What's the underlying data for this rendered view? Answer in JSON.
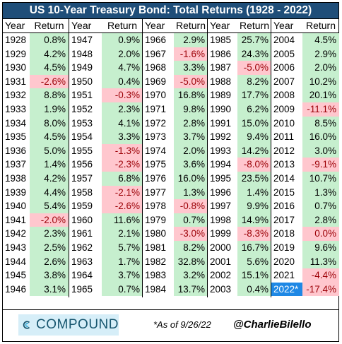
{
  "title": "US 10-Year Treasury Bond: Total Returns (1928 - 2022)",
  "headers": {
    "year": "Year",
    "return": "Return"
  },
  "chart_data": {
    "type": "table",
    "columns": [
      "Year",
      "Return"
    ],
    "unit": "%",
    "rows": [
      [
        "1928",
        "0.8%"
      ],
      [
        "1929",
        "4.2%"
      ],
      [
        "1930",
        "4.5%"
      ],
      [
        "1931",
        "-2.6%"
      ],
      [
        "1932",
        "8.8%"
      ],
      [
        "1933",
        "1.9%"
      ],
      [
        "1934",
        "8.0%"
      ],
      [
        "1935",
        "4.5%"
      ],
      [
        "1936",
        "5.0%"
      ],
      [
        "1937",
        "1.4%"
      ],
      [
        "1938",
        "4.2%"
      ],
      [
        "1939",
        "4.4%"
      ],
      [
        "1940",
        "5.4%"
      ],
      [
        "1941",
        "-2.0%"
      ],
      [
        "1942",
        "2.3%"
      ],
      [
        "1943",
        "2.5%"
      ],
      [
        "1944",
        "2.6%"
      ],
      [
        "1945",
        "3.8%"
      ],
      [
        "1946",
        "3.1%"
      ],
      [
        "1947",
        "0.9%"
      ],
      [
        "1948",
        "2.0%"
      ],
      [
        "1949",
        "4.7%"
      ],
      [
        "1950",
        "0.4%"
      ],
      [
        "1951",
        "-0.3%"
      ],
      [
        "1952",
        "2.3%"
      ],
      [
        "1953",
        "4.1%"
      ],
      [
        "1954",
        "3.3%"
      ],
      [
        "1955",
        "-1.3%"
      ],
      [
        "1956",
        "-2.3%"
      ],
      [
        "1957",
        "6.8%"
      ],
      [
        "1958",
        "-2.1%"
      ],
      [
        "1959",
        "-2.6%"
      ],
      [
        "1960",
        "11.6%"
      ],
      [
        "1961",
        "2.1%"
      ],
      [
        "1962",
        "5.7%"
      ],
      [
        "1963",
        "1.7%"
      ],
      [
        "1964",
        "3.7%"
      ],
      [
        "1965",
        "0.7%"
      ],
      [
        "1966",
        "2.9%"
      ],
      [
        "1967",
        "-1.6%"
      ],
      [
        "1968",
        "3.3%"
      ],
      [
        "1969",
        "-5.0%"
      ],
      [
        "1970",
        "16.8%"
      ],
      [
        "1971",
        "9.8%"
      ],
      [
        "1972",
        "2.8%"
      ],
      [
        "1973",
        "3.7%"
      ],
      [
        "1974",
        "2.0%"
      ],
      [
        "1975",
        "3.6%"
      ],
      [
        "1976",
        "16.0%"
      ],
      [
        "1977",
        "1.3%"
      ],
      [
        "1978",
        "-0.8%"
      ],
      [
        "1979",
        "0.7%"
      ],
      [
        "1980",
        "-3.0%"
      ],
      [
        "1981",
        "8.2%"
      ],
      [
        "1982",
        "32.8%"
      ],
      [
        "1983",
        "3.2%"
      ],
      [
        "1984",
        "13.7%"
      ],
      [
        "1985",
        "25.7%"
      ],
      [
        "1986",
        "24.3%"
      ],
      [
        "1987",
        "-5.0%"
      ],
      [
        "1988",
        "8.2%"
      ],
      [
        "1989",
        "17.7%"
      ],
      [
        "1990",
        "6.2%"
      ],
      [
        "1991",
        "15.0%"
      ],
      [
        "1992",
        "9.4%"
      ],
      [
        "1993",
        "14.2%"
      ],
      [
        "1994",
        "-8.0%"
      ],
      [
        "1995",
        "23.5%"
      ],
      [
        "1996",
        "1.4%"
      ],
      [
        "1997",
        "9.9%"
      ],
      [
        "1998",
        "14.9%"
      ],
      [
        "1999",
        "-8.3%"
      ],
      [
        "2000",
        "16.7%"
      ],
      [
        "2001",
        "5.6%"
      ],
      [
        "2002",
        "15.1%"
      ],
      [
        "2003",
        "0.4%"
      ],
      [
        "2004",
        "4.5%"
      ],
      [
        "2005",
        "2.9%"
      ],
      [
        "2006",
        "2.0%"
      ],
      [
        "2007",
        "10.2%"
      ],
      [
        "2008",
        "20.1%"
      ],
      [
        "2009",
        "-11.1%"
      ],
      [
        "2010",
        "8.5%"
      ],
      [
        "2011",
        "16.0%"
      ],
      [
        "2012",
        "3.0%"
      ],
      [
        "2013",
        "-9.1%"
      ],
      [
        "2014",
        "10.7%"
      ],
      [
        "2015",
        "1.3%"
      ],
      [
        "2016",
        "0.7%"
      ],
      [
        "2017",
        "2.8%"
      ],
      [
        "2018",
        "0.0%"
      ],
      [
        "2019",
        "9.6%"
      ],
      [
        "2020",
        "11.3%"
      ],
      [
        "2021",
        "-4.4%"
      ],
      [
        "2022*",
        "-17.4%"
      ]
    ],
    "colors": {
      "positive": "#c6efce",
      "negative": "#ffc7ce",
      "highlight_year": "#1e88e5"
    }
  },
  "footer": {
    "brand": "COMPOUND",
    "as_of": "*As of 9/26/22",
    "handle": "@CharlieBilello"
  }
}
